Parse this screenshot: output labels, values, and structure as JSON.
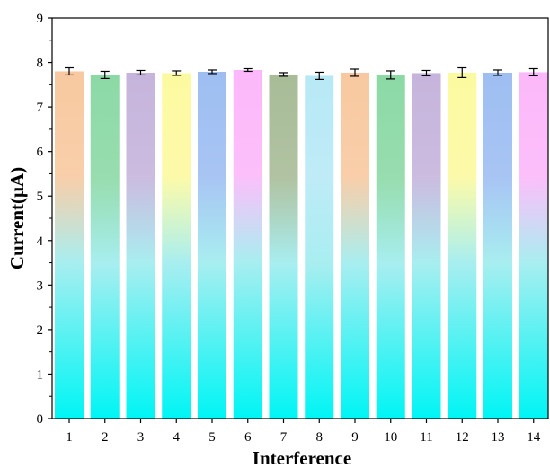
{
  "chart_data": {
    "type": "bar",
    "title": "",
    "xlabel": "Interference",
    "ylabel": "Current(μA)",
    "ylim": [
      0,
      9
    ],
    "yticks": [
      0,
      1,
      2,
      3,
      4,
      5,
      6,
      7,
      8,
      9
    ],
    "grid": false,
    "categories": [
      "1",
      "2",
      "3",
      "4",
      "5",
      "6",
      "7",
      "8",
      "9",
      "10",
      "11",
      "12",
      "13",
      "14"
    ],
    "values": [
      7.8,
      7.72,
      7.77,
      7.76,
      7.79,
      7.83,
      7.73,
      7.7,
      7.77,
      7.72,
      7.76,
      7.77,
      7.77,
      7.78
    ],
    "errors": [
      0.08,
      0.08,
      0.05,
      0.05,
      0.04,
      0.03,
      0.04,
      0.08,
      0.08,
      0.09,
      0.06,
      0.11,
      0.06,
      0.08
    ],
    "bar_top_colors": [
      "#f8c9a0",
      "#8cd9a6",
      "#c6b4dc",
      "#fcfaa0",
      "#9ebef2",
      "#fcb8fa",
      "#a8bc98",
      "#b7e9f5",
      "#f8c9a0",
      "#8cd9a6",
      "#c6b4dc",
      "#fcfaa0",
      "#9ebef2",
      "#fcb8fa"
    ],
    "bar_bottom_color": "#00f5f5"
  }
}
